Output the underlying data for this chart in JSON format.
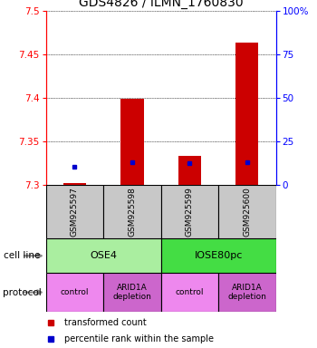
{
  "title": "GDS4826 / ILMN_1760830",
  "samples": [
    "GSM925597",
    "GSM925598",
    "GSM925599",
    "GSM925600"
  ],
  "red_values": [
    7.302,
    7.398,
    7.333,
    7.463
  ],
  "blue_percentiles": [
    10,
    13,
    12,
    13
  ],
  "ylim": [
    7.3,
    7.5
  ],
  "y_left_ticks": [
    7.3,
    7.35,
    7.4,
    7.45,
    7.5
  ],
  "y_right_ticks": [
    0,
    25,
    50,
    75,
    100
  ],
  "y_right_labels": [
    "0",
    "25",
    "50",
    "75",
    "100%"
  ],
  "cell_line_groups": [
    {
      "label": "OSE4",
      "start": 0,
      "end": 2,
      "color": "#aaeea0"
    },
    {
      "label": "IOSE80pc",
      "start": 2,
      "end": 4,
      "color": "#44dd44"
    }
  ],
  "protocol_groups": [
    {
      "label": "control",
      "start": 0,
      "end": 1,
      "color": "#ee88ee"
    },
    {
      "label": "ARID1A\ndepletion",
      "start": 1,
      "end": 2,
      "color": "#cc66cc"
    },
    {
      "label": "control",
      "start": 2,
      "end": 3,
      "color": "#ee88ee"
    },
    {
      "label": "ARID1A\ndepletion",
      "start": 3,
      "end": 4,
      "color": "#cc66cc"
    }
  ],
  "bar_width": 0.4,
  "red_color": "#cc0000",
  "blue_color": "#0000cc",
  "sample_box_color": "#c8c8c8",
  "title_fontsize": 10,
  "tick_fontsize": 7.5,
  "label_fontsize": 7.5
}
